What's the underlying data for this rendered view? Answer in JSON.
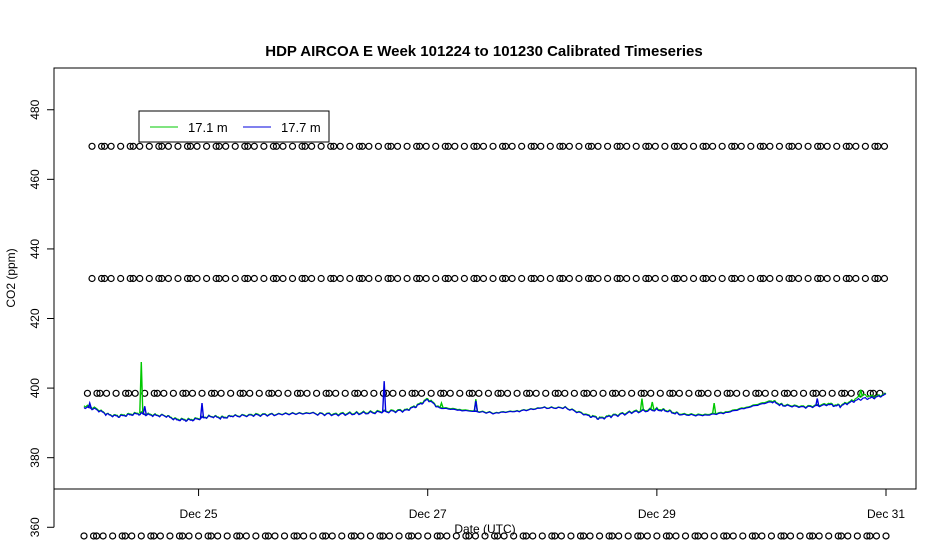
{
  "chart_data": {
    "type": "line",
    "title": "HDP AIRCOA E  Week 101224 to 101230  Calibrated Timeseries",
    "xlabel": "Date (UTC)",
    "ylabel": "CO2 (ppm)",
    "x_range_days": [
      "Dec 24 00:00",
      "Dec 31 00:00"
    ],
    "ylim": [
      371,
      492
    ],
    "x_ticks": [
      {
        "label": "Dec 25",
        "day": 25
      },
      {
        "label": "Dec 27",
        "day": 27
      },
      {
        "label": "Dec 29",
        "day": 29
      },
      {
        "label": "Dec 31",
        "day": 31
      }
    ],
    "y_ticks": [
      360,
      380,
      400,
      420,
      440,
      460,
      480
    ],
    "grid": false,
    "legend": {
      "position": "top-left",
      "entries": [
        {
          "label": "17.1 m",
          "color": "#00c800"
        },
        {
          "label": "17.7 m",
          "color": "#0000dd"
        }
      ]
    },
    "series": [
      {
        "name": "17.7 m",
        "color": "#0000dd",
        "points": [
          [
            24.0,
            394.5
          ],
          [
            24.1,
            394.0
          ],
          [
            24.2,
            392.4
          ],
          [
            24.3,
            391.8
          ],
          [
            24.4,
            392.4
          ],
          [
            24.5,
            392.6
          ],
          [
            24.6,
            392.1
          ],
          [
            24.7,
            392.1
          ],
          [
            24.8,
            391.0
          ],
          [
            24.9,
            390.7
          ],
          [
            25.0,
            391.1
          ],
          [
            25.1,
            391.9
          ],
          [
            25.2,
            391.4
          ],
          [
            25.3,
            391.9
          ],
          [
            25.5,
            392.2
          ],
          [
            25.7,
            392.4
          ],
          [
            26.0,
            392.6
          ],
          [
            26.2,
            392.4
          ],
          [
            26.4,
            392.7
          ],
          [
            26.6,
            393.1
          ],
          [
            26.8,
            393.5
          ],
          [
            26.9,
            394.7
          ],
          [
            27.0,
            396.7
          ],
          [
            27.1,
            394.3
          ],
          [
            27.3,
            393.6
          ],
          [
            27.6,
            392.9
          ],
          [
            27.8,
            393.4
          ],
          [
            28.0,
            394.3
          ],
          [
            28.2,
            394.3
          ],
          [
            28.4,
            392.1
          ],
          [
            28.5,
            391.2
          ],
          [
            28.6,
            391.9
          ],
          [
            28.8,
            393.1
          ],
          [
            29.0,
            393.8
          ],
          [
            29.1,
            393.3
          ],
          [
            29.2,
            392.4
          ],
          [
            29.4,
            392.1
          ],
          [
            29.6,
            392.9
          ],
          [
            29.8,
            394.5
          ],
          [
            30.0,
            396.1
          ],
          [
            30.1,
            395.0
          ],
          [
            30.3,
            394.5
          ],
          [
            30.5,
            395.2
          ],
          [
            30.6,
            394.8
          ],
          [
            30.7,
            396.1
          ],
          [
            30.8,
            397.0
          ],
          [
            30.9,
            397.2
          ],
          [
            31.0,
            398.2
          ]
        ],
        "spikes": [
          {
            "day": 24.05,
            "value": 395.7
          },
          {
            "day": 24.53,
            "value": 394.8
          },
          {
            "day": 25.03,
            "value": 395.7
          },
          {
            "day": 26.62,
            "value": 402.0
          },
          {
            "day": 27.42,
            "value": 396.3
          },
          {
            "day": 30.4,
            "value": 397.0
          }
        ]
      },
      {
        "name": "17.1 m",
        "color": "#00c800",
        "points": [
          [
            24.0,
            395.0
          ],
          [
            24.1,
            394.3
          ],
          [
            24.2,
            392.5
          ],
          [
            24.3,
            392.0
          ],
          [
            24.4,
            392.6
          ],
          [
            24.5,
            392.8
          ],
          [
            24.6,
            392.3
          ],
          [
            24.7,
            392.2
          ],
          [
            24.8,
            391.2
          ],
          [
            24.9,
            390.9
          ],
          [
            25.0,
            391.3
          ],
          [
            25.1,
            392.0
          ],
          [
            25.2,
            391.6
          ],
          [
            25.3,
            392.0
          ],
          [
            25.5,
            392.4
          ],
          [
            25.7,
            392.5
          ],
          [
            26.0,
            392.7
          ],
          [
            26.2,
            392.6
          ],
          [
            26.4,
            392.9
          ],
          [
            26.6,
            393.3
          ],
          [
            26.8,
            393.7
          ],
          [
            26.9,
            394.9
          ],
          [
            27.0,
            397.0
          ],
          [
            27.1,
            394.5
          ],
          [
            27.3,
            393.8
          ],
          [
            27.6,
            393.0
          ],
          [
            27.8,
            393.5
          ],
          [
            28.0,
            394.4
          ],
          [
            28.2,
            394.4
          ],
          [
            28.4,
            392.3
          ],
          [
            28.5,
            391.4
          ],
          [
            28.6,
            392.1
          ],
          [
            28.8,
            393.3
          ],
          [
            29.0,
            394.1
          ],
          [
            29.1,
            393.5
          ],
          [
            29.2,
            392.6
          ],
          [
            29.4,
            392.3
          ],
          [
            29.6,
            393.1
          ],
          [
            29.8,
            394.7
          ],
          [
            30.0,
            396.4
          ],
          [
            30.1,
            395.2
          ],
          [
            30.3,
            394.7
          ],
          [
            30.5,
            395.5
          ],
          [
            30.6,
            395.0
          ],
          [
            30.7,
            396.4
          ],
          [
            30.8,
            398.0
          ],
          [
            30.9,
            397.5
          ],
          [
            31.0,
            398.4
          ]
        ],
        "spikes": [
          {
            "day": 24.5,
            "value": 407.5
          },
          {
            "day": 27.12,
            "value": 395.7
          },
          {
            "day": 27.42,
            "value": 396.8
          },
          {
            "day": 28.87,
            "value": 397.0
          },
          {
            "day": 28.96,
            "value": 396.0
          },
          {
            "day": 29.5,
            "value": 395.7
          },
          {
            "day": 30.78,
            "value": 399.5
          }
        ]
      }
    ],
    "marker_rows": {
      "symbol": "open-circle",
      "color": "#000000",
      "rows": [
        {
          "value": 469.5,
          "start_day": 24.07,
          "interval_hours": 2.0
        },
        {
          "value": 431.5,
          "start_day": 24.07,
          "interval_hours": 2.0
        },
        {
          "value": 398.5,
          "start_day": 24.03,
          "interval_hours": 2.0
        },
        {
          "value": 357.5,
          "start_day": 24.0,
          "interval_hours": 2.0
        }
      ]
    }
  }
}
